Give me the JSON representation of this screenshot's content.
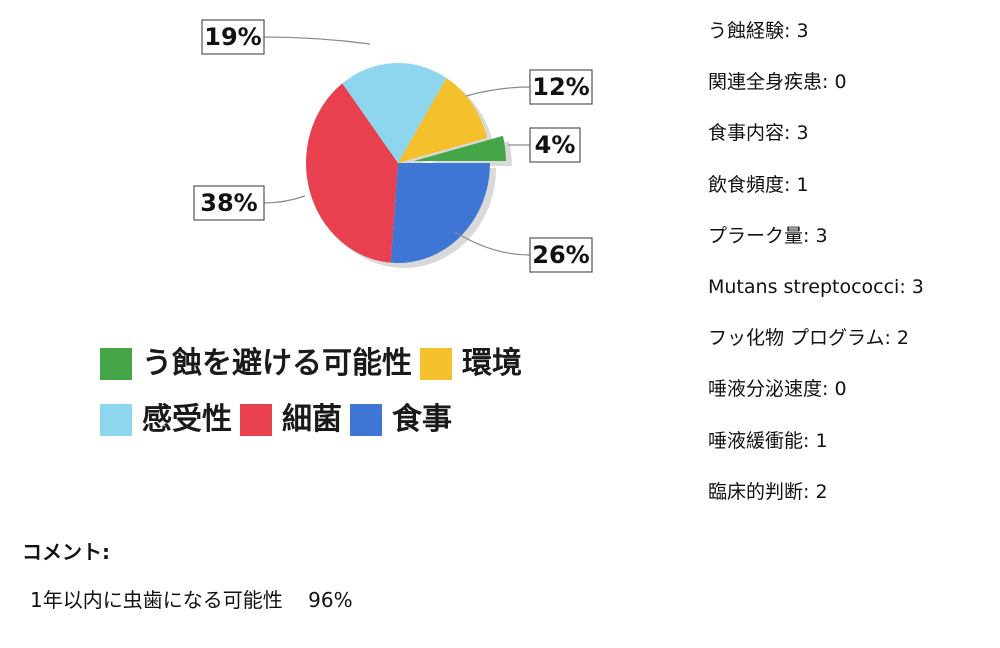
{
  "chart_data": {
    "type": "pie",
    "categories": [
      "う蝕を避ける可能性",
      "環境",
      "感受性",
      "細菌",
      "食事"
    ],
    "values": [
      4,
      12,
      19,
      38,
      26
    ],
    "labels": [
      "4%",
      "12%",
      "19%",
      "38%",
      "26%"
    ],
    "colors": [
      "#44a646",
      "#f4c12d",
      "#8ed6ee",
      "#e8404e",
      "#3f76d6"
    ],
    "legend": {
      "rows": [
        [
          {
            "name": "う蝕を避ける可能性",
            "color": "#44a646"
          },
          {
            "name": "環境",
            "color": "#f4c12d"
          }
        ],
        [
          {
            "name": "感受性",
            "color": "#8ed6ee"
          },
          {
            "name": "細菌",
            "color": "#e8404e"
          },
          {
            "name": "食事",
            "color": "#3f76d6"
          }
        ]
      ]
    }
  },
  "scores": [
    {
      "label": "う蝕経験:",
      "value": "3"
    },
    {
      "label": "関連全身疾患:",
      "value": "0"
    },
    {
      "label": "食事内容:",
      "value": "3"
    },
    {
      "label": "飲食頻度:",
      "value": "1"
    },
    {
      "label": "プラーク量:",
      "value": "3"
    },
    {
      "label": "Mutans streptococci:",
      "value": "3"
    },
    {
      "label": "フッ化物 プログラム:",
      "value": "2"
    },
    {
      "label": "唾液分泌速度:",
      "value": "0"
    },
    {
      "label": "唾液緩衝能:",
      "value": "1"
    },
    {
      "label": "臨床的判断:",
      "value": "2"
    }
  ],
  "comment": {
    "heading": "コメント:",
    "risk_label": "1年以内に虫歯になる可能性",
    "risk_value": "96%"
  }
}
